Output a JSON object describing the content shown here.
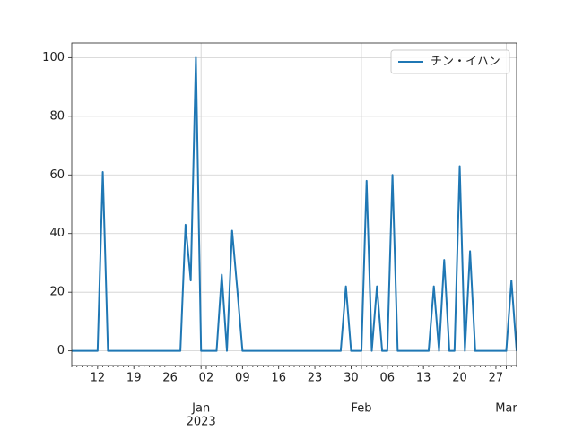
{
  "chart_data": {
    "type": "line",
    "x": [
      "2022-12-07",
      "2022-12-08",
      "2022-12-09",
      "2022-12-10",
      "2022-12-11",
      "2022-12-12",
      "2022-12-13",
      "2022-12-14",
      "2022-12-15",
      "2022-12-16",
      "2022-12-17",
      "2022-12-18",
      "2022-12-19",
      "2022-12-20",
      "2022-12-21",
      "2022-12-22",
      "2022-12-23",
      "2022-12-24",
      "2022-12-25",
      "2022-12-26",
      "2022-12-27",
      "2022-12-28",
      "2022-12-29",
      "2022-12-30",
      "2022-12-31",
      "2023-01-01",
      "2023-01-02",
      "2023-01-03",
      "2023-01-04",
      "2023-01-05",
      "2023-01-06",
      "2023-01-07",
      "2023-01-08",
      "2023-01-09",
      "2023-01-10",
      "2023-01-11",
      "2023-01-12",
      "2023-01-13",
      "2023-01-14",
      "2023-01-15",
      "2023-01-16",
      "2023-01-17",
      "2023-01-18",
      "2023-01-19",
      "2023-01-20",
      "2023-01-21",
      "2023-01-22",
      "2023-01-23",
      "2023-01-24",
      "2023-01-25",
      "2023-01-26",
      "2023-01-27",
      "2023-01-28",
      "2023-01-29",
      "2023-01-30",
      "2023-01-31",
      "2023-02-01",
      "2023-02-02",
      "2023-02-03",
      "2023-02-04",
      "2023-02-05",
      "2023-02-06",
      "2023-02-07",
      "2023-02-08",
      "2023-02-09",
      "2023-02-10",
      "2023-02-11",
      "2023-02-12",
      "2023-02-13",
      "2023-02-14",
      "2023-02-15",
      "2023-02-16",
      "2023-02-17",
      "2023-02-18",
      "2023-02-19",
      "2023-02-20",
      "2023-02-21",
      "2023-02-22",
      "2023-02-23",
      "2023-02-24",
      "2023-02-25",
      "2023-02-26",
      "2023-02-27",
      "2023-02-28",
      "2023-03-01",
      "2023-03-02",
      "2023-03-03"
    ],
    "series": [
      {
        "name": "チン・イハン",
        "color": "#1f77b4",
        "values": [
          0,
          0,
          0,
          0,
          0,
          0,
          61,
          0,
          0,
          0,
          0,
          0,
          0,
          0,
          0,
          0,
          0,
          0,
          0,
          0,
          0,
          0,
          43,
          24,
          100,
          0,
          0,
          0,
          0,
          26,
          0,
          41,
          21,
          0,
          0,
          0,
          0,
          0,
          0,
          0,
          0,
          0,
          0,
          0,
          0,
          0,
          0,
          0,
          0,
          0,
          0,
          0,
          0,
          22,
          0,
          0,
          0,
          58,
          0,
          22,
          0,
          0,
          60,
          0,
          0,
          0,
          0,
          0,
          0,
          0,
          22,
          0,
          31,
          0,
          0,
          63,
          0,
          34,
          0,
          0,
          0,
          0,
          0,
          0,
          0,
          24,
          0
        ]
      }
    ],
    "xlim": [
      "2022-12-07",
      "2023-03-03"
    ],
    "xticks": [
      {
        "value": "2022-12-12",
        "label": "12"
      },
      {
        "value": "2022-12-19",
        "label": "19"
      },
      {
        "value": "2022-12-26",
        "label": "26"
      },
      {
        "value": "2023-01-02",
        "label": "02"
      },
      {
        "value": "2023-01-09",
        "label": "09"
      },
      {
        "value": "2023-01-16",
        "label": "16"
      },
      {
        "value": "2023-01-23",
        "label": "23"
      },
      {
        "value": "2023-01-30",
        "label": "30"
      },
      {
        "value": "2023-02-06",
        "label": "06"
      },
      {
        "value": "2023-02-13",
        "label": "13"
      },
      {
        "value": "2023-02-20",
        "label": "20"
      },
      {
        "value": "2023-02-27",
        "label": "27"
      }
    ],
    "xticks_month": [
      {
        "value": "2023-01-01",
        "label": "Jan",
        "year": "2023"
      },
      {
        "value": "2023-02-01",
        "label": "Feb"
      },
      {
        "value": "2023-03-01",
        "label": "Mar"
      }
    ],
    "ylim": [
      -5,
      105
    ],
    "yticks": [
      0,
      20,
      40,
      60,
      80,
      100
    ],
    "grid": true,
    "legend": "upper right"
  }
}
